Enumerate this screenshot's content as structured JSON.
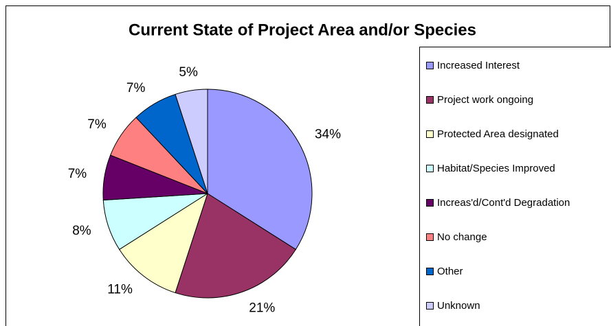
{
  "chart_data": {
    "type": "pie",
    "title": "Current State of Project Area and/or Species",
    "categories": [
      "Increased Interest",
      "Project work ongoing",
      "Protected Area designated",
      "Habitat/Species Improved",
      "Increas'd/Cont'd Degradation",
      "No change",
      "Other",
      "Unknown"
    ],
    "values": [
      34,
      21,
      11,
      8,
      7,
      7,
      7,
      5
    ],
    "value_labels": [
      "34%",
      "21%",
      "11%",
      "8%",
      "7%",
      "7%",
      "7%",
      "5%"
    ],
    "colors": [
      "#9999ff",
      "#993366",
      "#ffffcc",
      "#ccffff",
      "#660066",
      "#ff8080",
      "#0066cc",
      "#ccccff"
    ],
    "legend": "right"
  }
}
